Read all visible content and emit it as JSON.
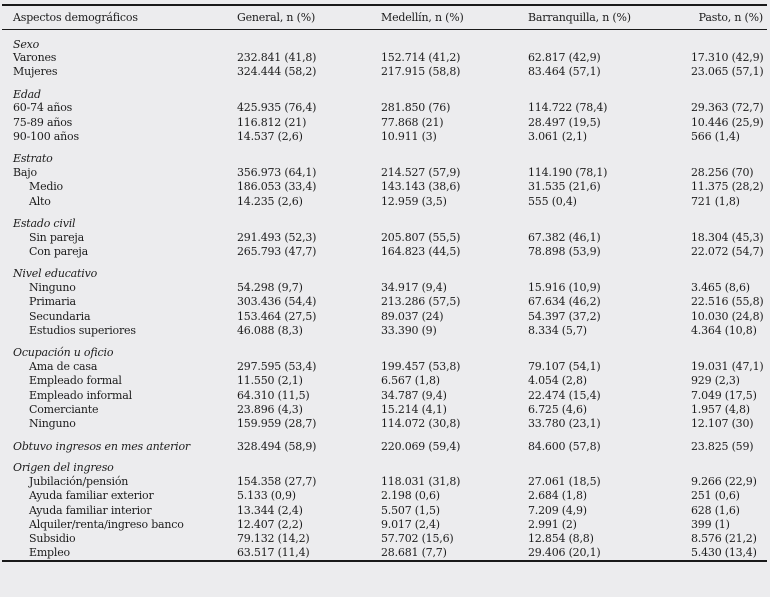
{
  "colors": {
    "background": "#ececee",
    "text": "#1c1c1c",
    "rule": "#1a1a1a"
  },
  "table": {
    "columns": {
      "aspect": "Aspectos demográficos",
      "general": "General, n (%)",
      "medellin": "Medellín, n (%)",
      "barranquilla": "Barranquilla, n (%)",
      "pasto": "Pasto, n (%)"
    },
    "sections": [
      {
        "header": "Sexo",
        "rows": [
          {
            "label": "Varones",
            "indent": false,
            "values": [
              "232.841 (41,8)",
              "152.714 (41,2)",
              "62.817 (42,9)",
              "17.310 (42,9)"
            ]
          },
          {
            "label": "Mujeres",
            "indent": false,
            "values": [
              "324.444 (58,2)",
              "217.915 (58,8)",
              "83.464 (57,1)",
              "23.065 (57,1)"
            ]
          }
        ]
      },
      {
        "header": "Edad",
        "rows": [
          {
            "label": "60-74 años",
            "indent": false,
            "values": [
              "425.935 (76,4)",
              "281.850 (76)",
              "114.722 (78,4)",
              "29.363 (72,7)"
            ]
          },
          {
            "label": "75-89 años",
            "indent": false,
            "values": [
              "116.812 (21)",
              "77.868 (21)",
              "28.497 (19,5)",
              "10.446 (25,9)"
            ]
          },
          {
            "label": "90-100 años",
            "indent": false,
            "values": [
              "14.537 (2,6)",
              "10.911 (3)",
              "3.061 (2,1)",
              "566 (1,4)"
            ]
          }
        ]
      },
      {
        "header": "Estrato",
        "rows": [
          {
            "label": "Bajo",
            "indent": false,
            "values": [
              "356.973 (64,1)",
              "214.527 (57,9)",
              "114.190 (78,1)",
              "28.256 (70)"
            ]
          },
          {
            "label": "Medio",
            "indent": true,
            "values": [
              "186.053 (33,4)",
              "143.143 (38,6)",
              "31.535 (21,6)",
              "11.375 (28,2)"
            ]
          },
          {
            "label": "Alto",
            "indent": true,
            "values": [
              "14.235 (2,6)",
              "12.959 (3,5)",
              "555 (0,4)",
              "721 (1,8)"
            ]
          }
        ]
      },
      {
        "header": "Estado civil",
        "rows": [
          {
            "label": "Sin pareja",
            "indent": true,
            "values": [
              "291.493 (52,3)",
              "205.807 (55,5)",
              "67.382 (46,1)",
              "18.304 (45,3)"
            ]
          },
          {
            "label": "Con pareja",
            "indent": true,
            "values": [
              "265.793 (47,7)",
              "164.823 (44,5)",
              "78.898 (53,9)",
              "22.072 (54,7)"
            ]
          }
        ]
      },
      {
        "header": "Nivel educativo",
        "rows": [
          {
            "label": "Ninguno",
            "indent": true,
            "values": [
              "54.298 (9,7)",
              "34.917 (9,4)",
              "15.916 (10,9)",
              "3.465 (8,6)"
            ]
          },
          {
            "label": "Primaria",
            "indent": true,
            "values": [
              "303.436 (54,4)",
              "213.286 (57,5)",
              "67.634 (46,2)",
              "22.516 (55,8)"
            ]
          },
          {
            "label": "Secundaria",
            "indent": true,
            "values": [
              "153.464 (27,5)",
              "89.037 (24)",
              "54.397 (37,2)",
              "10.030 (24,8)"
            ]
          },
          {
            "label": "Estudios superiores",
            "indent": true,
            "values": [
              "46.088 (8,3)",
              "33.390 (9)",
              "8.334 (5,7)",
              "4.364 (10,8)"
            ]
          }
        ]
      },
      {
        "header": "Ocupación u oficio",
        "rows": [
          {
            "label": "Ama de casa",
            "indent": true,
            "values": [
              "297.595 (53,4)",
              "199.457 (53,8)",
              "79.107 (54,1)",
              "19.031 (47,1)"
            ]
          },
          {
            "label": "Empleado formal",
            "indent": true,
            "values": [
              "11.550 (2,1)",
              "6.567 (1,8)",
              "4.054 (2,8)",
              "929 (2,3)"
            ]
          },
          {
            "label": "Empleado informal",
            "indent": true,
            "values": [
              "64.310 (11,5)",
              "34.787 (9,4)",
              "22.474 (15,4)",
              "7.049 (17,5)"
            ]
          },
          {
            "label": "Comerciante",
            "indent": true,
            "values": [
              "23.896 (4,3)",
              "15.214 (4,1)",
              "6.725 (4,6)",
              "1.957 (4,8)"
            ]
          },
          {
            "label": "Ninguno",
            "indent": true,
            "values": [
              "159.959 (28,7)",
              "114.072 (30,8)",
              "33.780 (23,1)",
              "12.107 (30)"
            ]
          }
        ]
      },
      {
        "header": "Obtuvo ingresos en mes anterior",
        "header_values": [
          "328.494 (58,9)",
          "220.069 (59,4)",
          "84.600 (57,8)",
          "23.825 (59)"
        ],
        "rows": []
      },
      {
        "header": "Origen del ingreso",
        "rows": [
          {
            "label": "Jubilación/pensión",
            "indent": true,
            "values": [
              "154.358 (27,7)",
              "118.031 (31,8)",
              "27.061 (18,5)",
              "9.266 (22,9)"
            ]
          },
          {
            "label": "Ayuda familiar exterior",
            "indent": true,
            "values": [
              "5.133 (0,9)",
              "2.198 (0,6)",
              "2.684 (1,8)",
              "251 (0,6)"
            ]
          },
          {
            "label": "Ayuda familiar interior",
            "indent": true,
            "values": [
              "13.344 (2,4)",
              "5.507 (1,5)",
              "7.209 (4,9)",
              "628 (1,6)"
            ]
          },
          {
            "label": "Alquiler/renta/ingreso banco",
            "indent": true,
            "values": [
              "12.407 (2,2)",
              "9.017 (2,4)",
              "2.991 (2)",
              "399 (1)"
            ]
          },
          {
            "label": "Subsidio",
            "indent": true,
            "values": [
              "79.132 (14,2)",
              "57.702 (15,6)",
              "12.854 (8,8)",
              "8.576 (21,2)"
            ]
          },
          {
            "label": "Empleo",
            "indent": true,
            "values": [
              "63.517 (11,4)",
              "28.681 (7,7)",
              "29.406 (20,1)",
              "5.430 (13,4)"
            ]
          }
        ]
      }
    ]
  }
}
